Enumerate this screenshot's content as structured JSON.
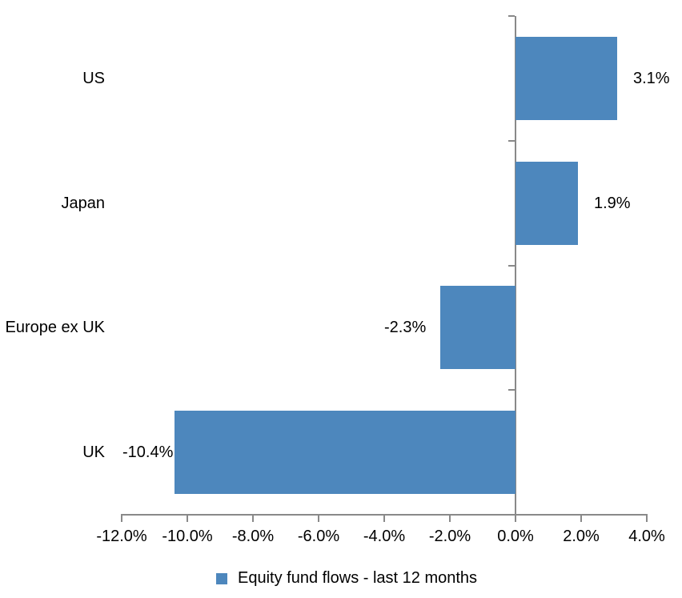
{
  "chart_data": {
    "type": "bar",
    "orientation": "horizontal",
    "title": "",
    "xlabel": "",
    "ylabel": "",
    "categories": [
      "US",
      "Japan",
      "Europe ex UK",
      "UK"
    ],
    "values": [
      3.1,
      1.9,
      -2.3,
      -10.4
    ],
    "data_labels": [
      "3.1%",
      "1.9%",
      "-2.3%",
      "-10.4%"
    ],
    "x_tick_values": [
      -12,
      -10,
      -8,
      -6,
      -4,
      -2,
      0,
      2,
      4
    ],
    "x_tick_labels": [
      "-12.0%",
      "-10.0%",
      "-8.0%",
      "-6.0%",
      "-4.0%",
      "-2.0%",
      "0.0%",
      "2.0%",
      "4.0%"
    ],
    "xlim": [
      -12,
      4
    ],
    "grid": false,
    "legend_position": "bottom",
    "legend_label": "Equity fund flows - last 12 months",
    "colors": {
      "bar": "#4d87bd",
      "axis": "#898989",
      "text": "#000000",
      "background": "#ffffff"
    }
  }
}
